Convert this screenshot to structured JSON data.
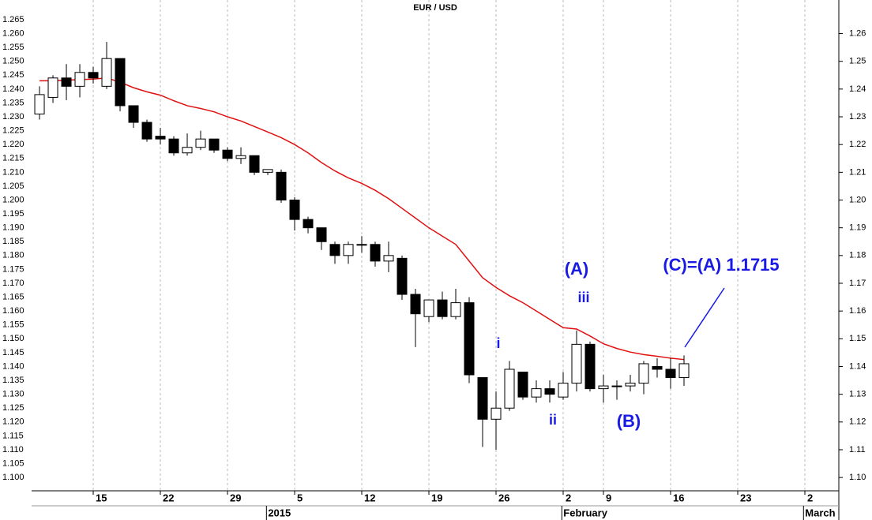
{
  "chart_data": {
    "type": "candlestick",
    "title": "EUR / USD",
    "x": [
      0,
      1,
      2,
      3,
      4,
      5,
      6,
      7,
      8,
      9,
      10,
      11,
      12,
      13,
      14,
      15,
      16,
      17,
      18,
      19,
      20,
      21,
      22,
      23,
      24,
      25,
      26,
      27,
      28,
      29,
      30,
      31,
      32,
      33,
      34,
      35,
      36,
      37,
      38,
      39,
      40,
      41,
      42,
      43,
      44,
      45,
      46,
      47,
      48
    ],
    "open": [
      1.231,
      1.237,
      1.244,
      1.241,
      1.246,
      1.241,
      1.251,
      1.234,
      1.228,
      1.223,
      1.222,
      1.217,
      1.219,
      1.222,
      1.218,
      1.215,
      1.216,
      1.21,
      1.21,
      1.2,
      1.193,
      1.19,
      1.184,
      1.18,
      1.184,
      1.184,
      1.178,
      1.179,
      1.166,
      1.158,
      1.164,
      1.158,
      1.163,
      1.136,
      1.121,
      1.125,
      1.138,
      1.129,
      1.132,
      1.129,
      1.134,
      1.148,
      1.132,
      1.133,
      1.133,
      1.134,
      1.14,
      1.139,
      1.136
    ],
    "high": [
      1.241,
      1.245,
      1.249,
      1.249,
      1.248,
      1.257,
      1.251,
      1.234,
      1.229,
      1.226,
      1.223,
      1.224,
      1.225,
      1.222,
      1.219,
      1.219,
      1.216,
      1.211,
      1.211,
      1.201,
      1.194,
      1.19,
      1.185,
      1.185,
      1.187,
      1.185,
      1.185,
      1.18,
      1.168,
      1.164,
      1.167,
      1.168,
      1.165,
      1.136,
      1.131,
      1.142,
      1.138,
      1.135,
      1.135,
      1.138,
      1.153,
      1.149,
      1.137,
      1.135,
      1.137,
      1.142,
      1.143,
      1.143,
      1.144
    ],
    "low": [
      1.229,
      1.235,
      1.236,
      1.237,
      1.242,
      1.24,
      1.232,
      1.226,
      1.221,
      1.22,
      1.216,
      1.216,
      1.218,
      1.217,
      1.214,
      1.213,
      1.209,
      1.209,
      1.199,
      1.189,
      1.188,
      1.182,
      1.177,
      1.177,
      1.181,
      1.176,
      1.174,
      1.164,
      1.147,
      1.156,
      1.157,
      1.157,
      1.134,
      1.111,
      1.11,
      1.124,
      1.128,
      1.127,
      1.127,
      1.128,
      1.131,
      1.131,
      1.127,
      1.128,
      1.131,
      1.13,
      1.136,
      1.132,
      1.133
    ],
    "close": [
      1.238,
      1.244,
      1.241,
      1.246,
      1.244,
      1.251,
      1.234,
      1.228,
      1.222,
      1.222,
      1.217,
      1.219,
      1.222,
      1.218,
      1.215,
      1.216,
      1.21,
      1.211,
      1.2,
      1.193,
      1.19,
      1.185,
      1.18,
      1.184,
      1.184,
      1.178,
      1.18,
      1.166,
      1.159,
      1.164,
      1.158,
      1.163,
      1.137,
      1.121,
      1.125,
      1.139,
      1.129,
      1.132,
      1.13,
      1.134,
      1.148,
      1.132,
      1.133,
      1.133,
      1.134,
      1.141,
      1.139,
      1.136,
      1.141
    ],
    "up_color": "#ffffff",
    "down_color": "#000000",
    "moving_average": {
      "color": "#e01010",
      "values": [
        1.243,
        1.243,
        1.2432,
        1.2434,
        1.2436,
        1.244,
        1.2425,
        1.2405,
        1.239,
        1.2378,
        1.2358,
        1.234,
        1.233,
        1.2318,
        1.23,
        1.2285,
        1.2265,
        1.2245,
        1.2225,
        1.22,
        1.217,
        1.2135,
        1.2105,
        1.208,
        1.206,
        1.2035,
        1.2005,
        1.197,
        1.1935,
        1.19,
        1.187,
        1.184,
        1.178,
        1.172,
        1.1685,
        1.1655,
        1.163,
        1.16,
        1.157,
        1.154,
        1.1535,
        1.151,
        1.1482,
        1.1465,
        1.1452,
        1.1443,
        1.1437,
        1.143,
        1.1425
      ]
    },
    "xlim": [
      -0.59,
      59.53
    ],
    "xticks": [
      {
        "value": 4,
        "label": "15"
      },
      {
        "value": 9,
        "label": "22"
      },
      {
        "value": 14,
        "label": "29"
      },
      {
        "value": 19,
        "label": "5"
      },
      {
        "value": 24,
        "label": "12"
      },
      {
        "value": 29,
        "label": "19"
      },
      {
        "value": 34,
        "label": "26"
      },
      {
        "value": 39,
        "label": "2"
      },
      {
        "value": 42,
        "label": "9"
      },
      {
        "value": 47,
        "label": "16"
      },
      {
        "value": 52,
        "label": "23"
      },
      {
        "value": 57,
        "label": "2"
      }
    ],
    "period_ticks": [
      {
        "value": 16.9,
        "label": "2015"
      },
      {
        "value": 38.9,
        "label": "February"
      },
      {
        "value": 56.9,
        "label": "March"
      }
    ],
    "ylim": [
      1.0952,
      1.2721
    ],
    "yticks": [
      {
        "value": 1.1,
        "label": "1.100"
      },
      1.105,
      {
        "value": 1.11,
        "label": "1.110"
      },
      1.115,
      {
        "value": 1.12,
        "label": "1.120"
      },
      1.125,
      {
        "value": 1.13,
        "label": "1.130"
      },
      1.135,
      {
        "value": 1.14,
        "label": "1.140"
      },
      1.145,
      {
        "value": 1.15,
        "label": "1.150"
      },
      1.155,
      {
        "value": 1.16,
        "label": "1.160"
      },
      1.165,
      {
        "value": 1.17,
        "label": "1.170"
      },
      1.175,
      {
        "value": 1.18,
        "label": "1.180"
      },
      1.185,
      {
        "value": 1.19,
        "label": "1.190"
      },
      1.195,
      {
        "value": 1.2,
        "label": "1.200"
      },
      1.205,
      {
        "value": 1.21,
        "label": "1.210"
      },
      1.215,
      {
        "value": 1.22,
        "label": "1.220"
      },
      1.225,
      {
        "value": 1.23,
        "label": "1.230"
      },
      1.235,
      {
        "value": 1.24,
        "label": "1.240"
      },
      1.245,
      {
        "value": 1.25,
        "label": "1.250"
      },
      1.255,
      {
        "value": 1.26,
        "label": "1.260"
      },
      1.265
    ],
    "y2ticks": [
      {
        "value": 1.1,
        "label": "1.10"
      },
      1.11,
      1.12,
      1.13,
      1.14,
      1.15,
      1.16,
      1.17,
      1.18,
      1.19,
      {
        "value": 1.2,
        "label": "1.20"
      },
      1.21,
      1.22,
      1.23,
      1.24,
      1.25,
      1.26
    ],
    "grid": true,
    "annotations": [
      "(A)",
      "iii",
      "i",
      "ii",
      "(B)",
      "(C)=(A) 1.1715"
    ],
    "annotation_color": "#1a1ae6"
  }
}
